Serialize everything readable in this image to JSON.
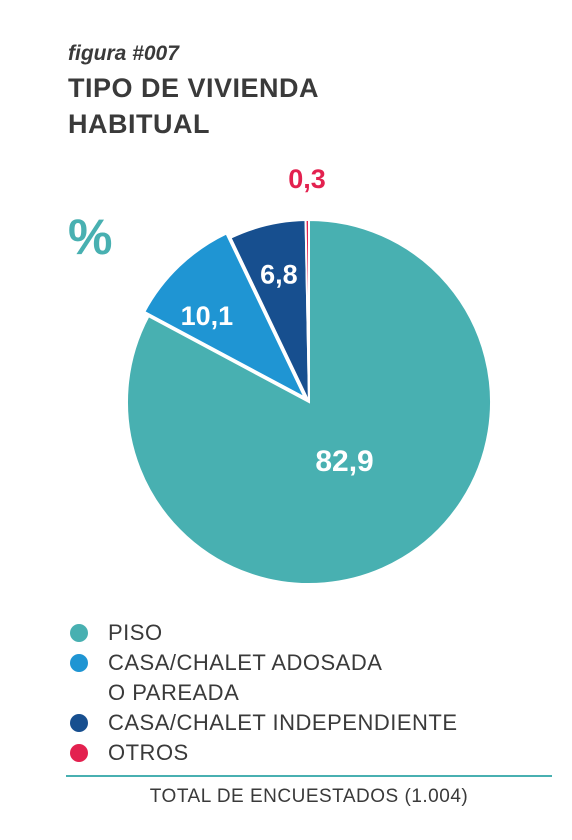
{
  "figure_label": "figura #007",
  "title": "TIPO DE VIVIENDA\nHABITUAL",
  "unit_label": "%",
  "chart_data": {
    "type": "pie",
    "title": "TIPO DE VIVIENDA HABITUAL",
    "unit": "%",
    "categories": [
      "PISO",
      "CASA/CHALET ADOSADA O PAREADA",
      "CASA/CHALET INDEPENDIENTE",
      "OTROS"
    ],
    "values": [
      82.9,
      10.1,
      6.8,
      0.3
    ],
    "value_labels": [
      "82,9",
      "10,1",
      "6,8",
      "0,3"
    ],
    "colors": [
      "#48b0b1",
      "#1f95d3",
      "#174f8f",
      "#e3214f"
    ],
    "label_colors": [
      "#ffffff",
      "#ffffff",
      "#ffffff",
      "#e3214f"
    ],
    "exploded": [
      "CASA/CHALET ADOSADA O PAREADA"
    ]
  },
  "legend": [
    {
      "label": "PISO",
      "color": "#48b0b1"
    },
    {
      "label": "CASA/CHALET ADOSADA\nO PAREADA",
      "color": "#1f95d3"
    },
    {
      "label": "CASA/CHALET INDEPENDIENTE",
      "color": "#174f8f"
    },
    {
      "label": "OTROS",
      "color": "#e3214f"
    }
  ],
  "footer": "TOTAL DE ENCUESTADOS (1.004)"
}
